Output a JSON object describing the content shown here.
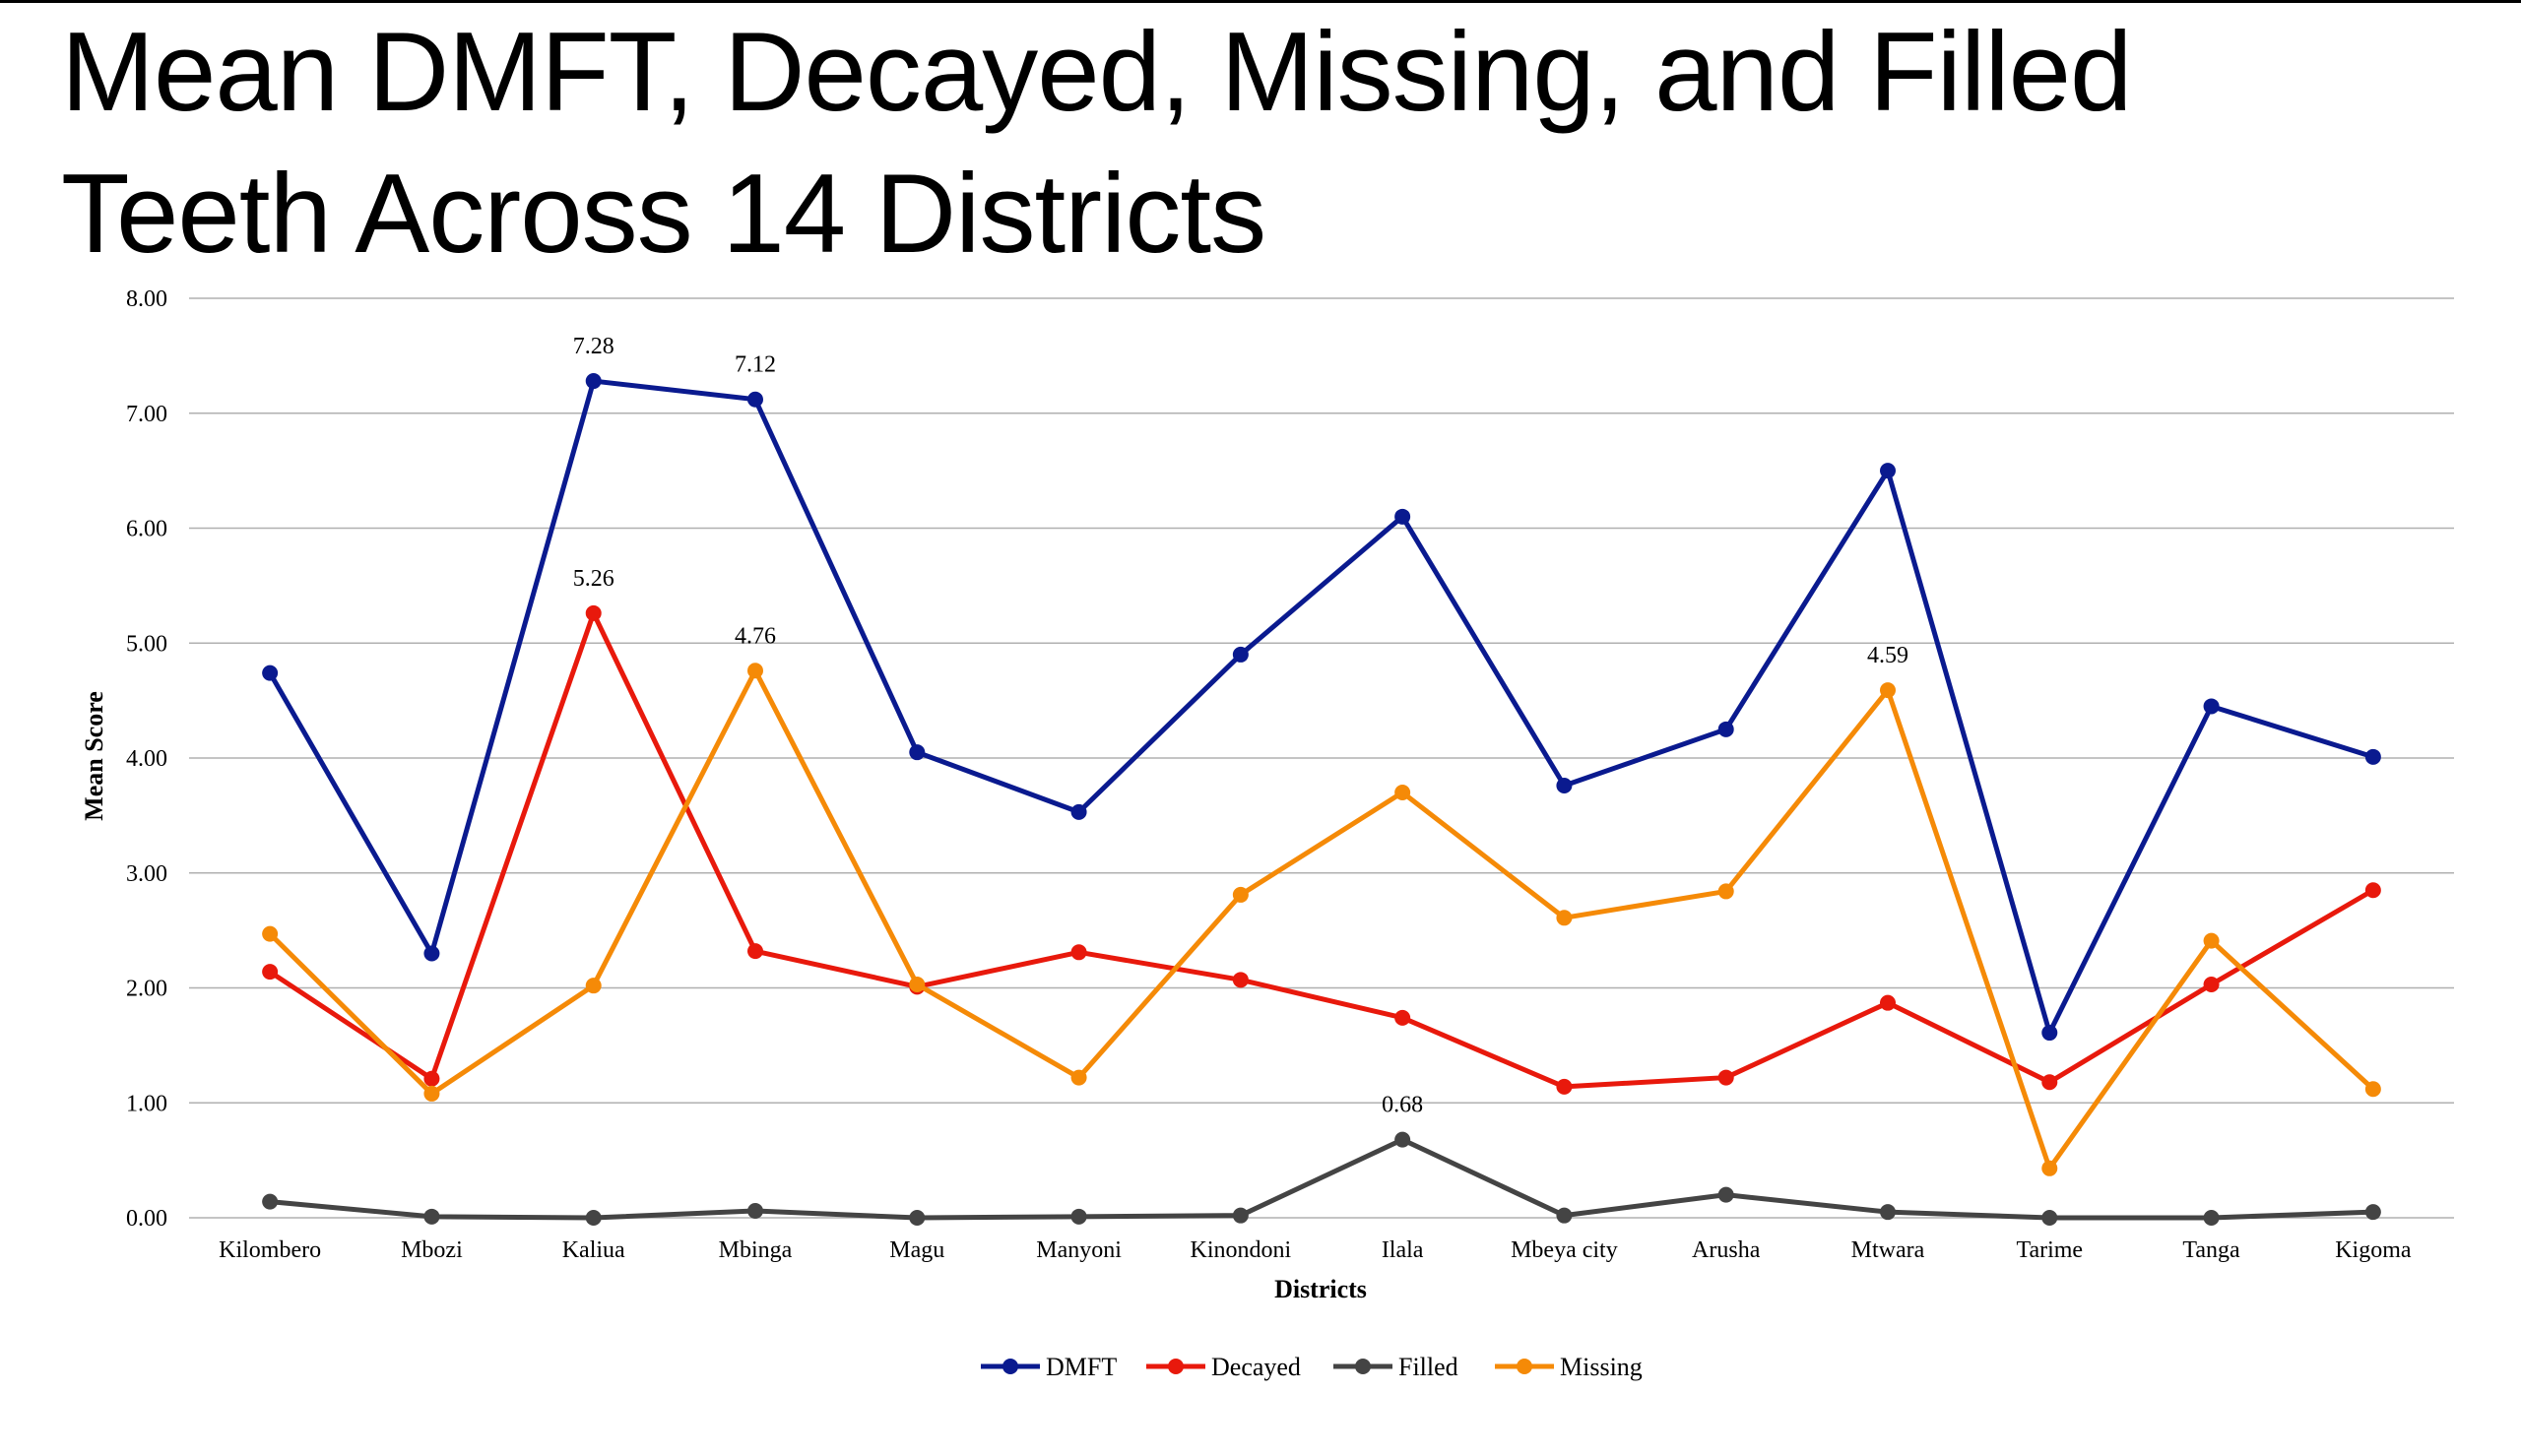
{
  "title": {
    "line1": "Mean DMFT, Decayed, Missing, and Filled",
    "line2": "Teeth Across 14 Districts"
  },
  "colors": {
    "DMFT": "#0a1a8f",
    "Decayed": "#e8190c",
    "Filled": "#444444",
    "Missing": "#f58a07",
    "grid": "#b0b0b0"
  },
  "chart_data": {
    "type": "line",
    "xlabel": "Districts",
    "ylabel": "Mean Score",
    "ylim": [
      0,
      8
    ],
    "yticks": [
      "0.00",
      "1.00",
      "2.00",
      "3.00",
      "4.00",
      "5.00",
      "6.00",
      "7.00",
      "8.00"
    ],
    "grid": true,
    "legend": "bottom-center",
    "categories": [
      "Kilombero",
      "Mbozi",
      "Kaliua",
      "Mbinga",
      "Magu",
      "Manyoni",
      "Kinondoni",
      "Ilala",
      "Mbeya city",
      "Arusha",
      "Mtwara",
      "Tarime",
      "Tanga",
      "Kigoma"
    ],
    "series": [
      {
        "name": "DMFT",
        "values": [
          4.74,
          2.3,
          7.28,
          7.12,
          4.05,
          3.53,
          4.9,
          6.1,
          3.76,
          4.25,
          6.5,
          1.61,
          4.45,
          4.01
        ]
      },
      {
        "name": "Decayed",
        "values": [
          2.14,
          1.21,
          5.26,
          2.32,
          2.01,
          2.31,
          2.07,
          1.74,
          1.14,
          1.22,
          1.87,
          1.18,
          2.03,
          2.85
        ]
      },
      {
        "name": "Filled",
        "values": [
          0.14,
          0.01,
          0.0,
          0.06,
          0.0,
          0.01,
          0.02,
          0.68,
          0.02,
          0.2,
          0.05,
          0.0,
          0.0,
          0.05
        ]
      },
      {
        "name": "Missing",
        "values": [
          2.47,
          1.08,
          2.02,
          4.76,
          2.03,
          1.22,
          2.81,
          3.7,
          2.61,
          2.84,
          4.59,
          0.43,
          2.41,
          1.12
        ]
      }
    ],
    "annotations": [
      {
        "series": "DMFT",
        "category": "Kaliua",
        "label": "7.28"
      },
      {
        "series": "DMFT",
        "category": "Mbinga",
        "label": "7.12"
      },
      {
        "series": "Decayed",
        "category": "Kaliua",
        "label": "5.26"
      },
      {
        "series": "Missing",
        "category": "Mbinga",
        "label": "4.76"
      },
      {
        "series": "Missing",
        "category": "Mtwara",
        "label": "4.59"
      },
      {
        "series": "Filled",
        "category": "Ilala",
        "label": "0.68"
      }
    ]
  }
}
